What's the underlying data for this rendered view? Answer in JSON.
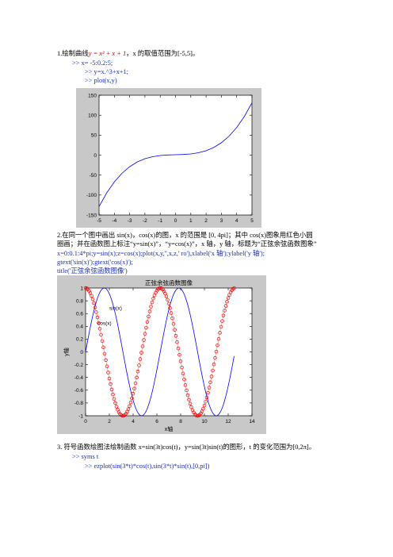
{
  "section1": {
    "title_prefix": "1.绘制曲线",
    "title_formula": "y = x³ + x + 1",
    "title_suffix": "，x 的取值范围为[-5,5]。",
    "code": [
      ">>  x= -5:0.2:5;",
      ">>  y=x.^3+x+1;",
      ">>  plot(x,y)"
    ]
  },
  "section2": {
    "desc_line1": "2.在同一个图中画出 sin(x)，cos(x)的图，x 的范围是 [0, 4pi]；其中 cos(x)图象用红色小圆",
    "desc_line2": "圈画；并在函数图上标注“y=sin(x)”，“y=cos(x)”，x 轴，y 轴，标题为“正弦余弦函数图象”",
    "code_line1": "x=0:0.1:4*pi;y=sin(x);z=cos(x);plot(x,y,'',x,z,' ro'),xlabel('x 轴');ylabel('y 轴');",
    "code_line2": "gtext('sin(x)');gtext('cos(x)');",
    "code_line3": "title('正弦余弦函数图像')"
  },
  "section3": {
    "desc": "3. 符号函数绘图法绘制函数 x=sin(3t)cos(t)，y=sin(3t)sin(t)的图形，t 的变化范围为[0,2π]。",
    "code": [
      ">>  syms t",
      ">>  ezplot(sin(3*t)*cos(t),sin(3*t)*sin(t),[0,pi])"
    ]
  },
  "chart_data": [
    {
      "type": "line",
      "title": "",
      "xlabel": "",
      "ylabel": "",
      "xlim": [
        -5,
        5
      ],
      "ylim": [
        -150,
        150
      ],
      "x_ticks": [
        "-5",
        "-4",
        "-3",
        "-2",
        "-1",
        "0",
        "1",
        "2",
        "3",
        "4",
        "5"
      ],
      "y_ticks": [
        "150",
        "100",
        "50",
        "0",
        "-50",
        "-100",
        "-150"
      ],
      "series": [
        {
          "color": "#0000ff",
          "x": [
            -5,
            -4.5,
            -4,
            -3.5,
            -3,
            -2.5,
            -2,
            -1.5,
            -1,
            -0.5,
            0,
            0.5,
            1,
            1.5,
            2,
            2.5,
            3,
            3.5,
            4,
            4.5,
            5
          ],
          "y": [
            -129,
            -94.6,
            -67,
            -45.4,
            -29,
            -17.1,
            -9,
            -3.9,
            -1,
            0.4,
            1,
            1.6,
            3,
            5.9,
            11,
            19.1,
            31,
            47.4,
            69,
            96.6,
            131
          ]
        }
      ]
    },
    {
      "type": "line",
      "title": "正弦余弦函数图像",
      "xlabel": "x轴",
      "ylabel": "y轴",
      "xlim": [
        0,
        14
      ],
      "ylim": [
        -1,
        1
      ],
      "x_ticks": [
        "0",
        "2",
        "4",
        "6",
        "8",
        "10",
        "12",
        "14"
      ],
      "y_ticks": [
        "1",
        "0.8",
        "0.6",
        "0.4",
        "0.2",
        "0",
        "-0.2",
        "-0.4",
        "-0.6",
        "-0.8",
        "-1"
      ],
      "annotations": [
        "sin(x)",
        "cos(x)"
      ],
      "series": [
        {
          "name": "sin(x)",
          "function": "sin",
          "x_start": 0,
          "x_end": 12.5,
          "x_step": 0.1,
          "color": "#0000ff",
          "marker": "none"
        },
        {
          "name": "cos(x)",
          "function": "cos",
          "x_start": 0,
          "x_end": 12.5,
          "x_step": 0.1,
          "color": "#ff0000",
          "marker": "circle"
        }
      ]
    }
  ]
}
